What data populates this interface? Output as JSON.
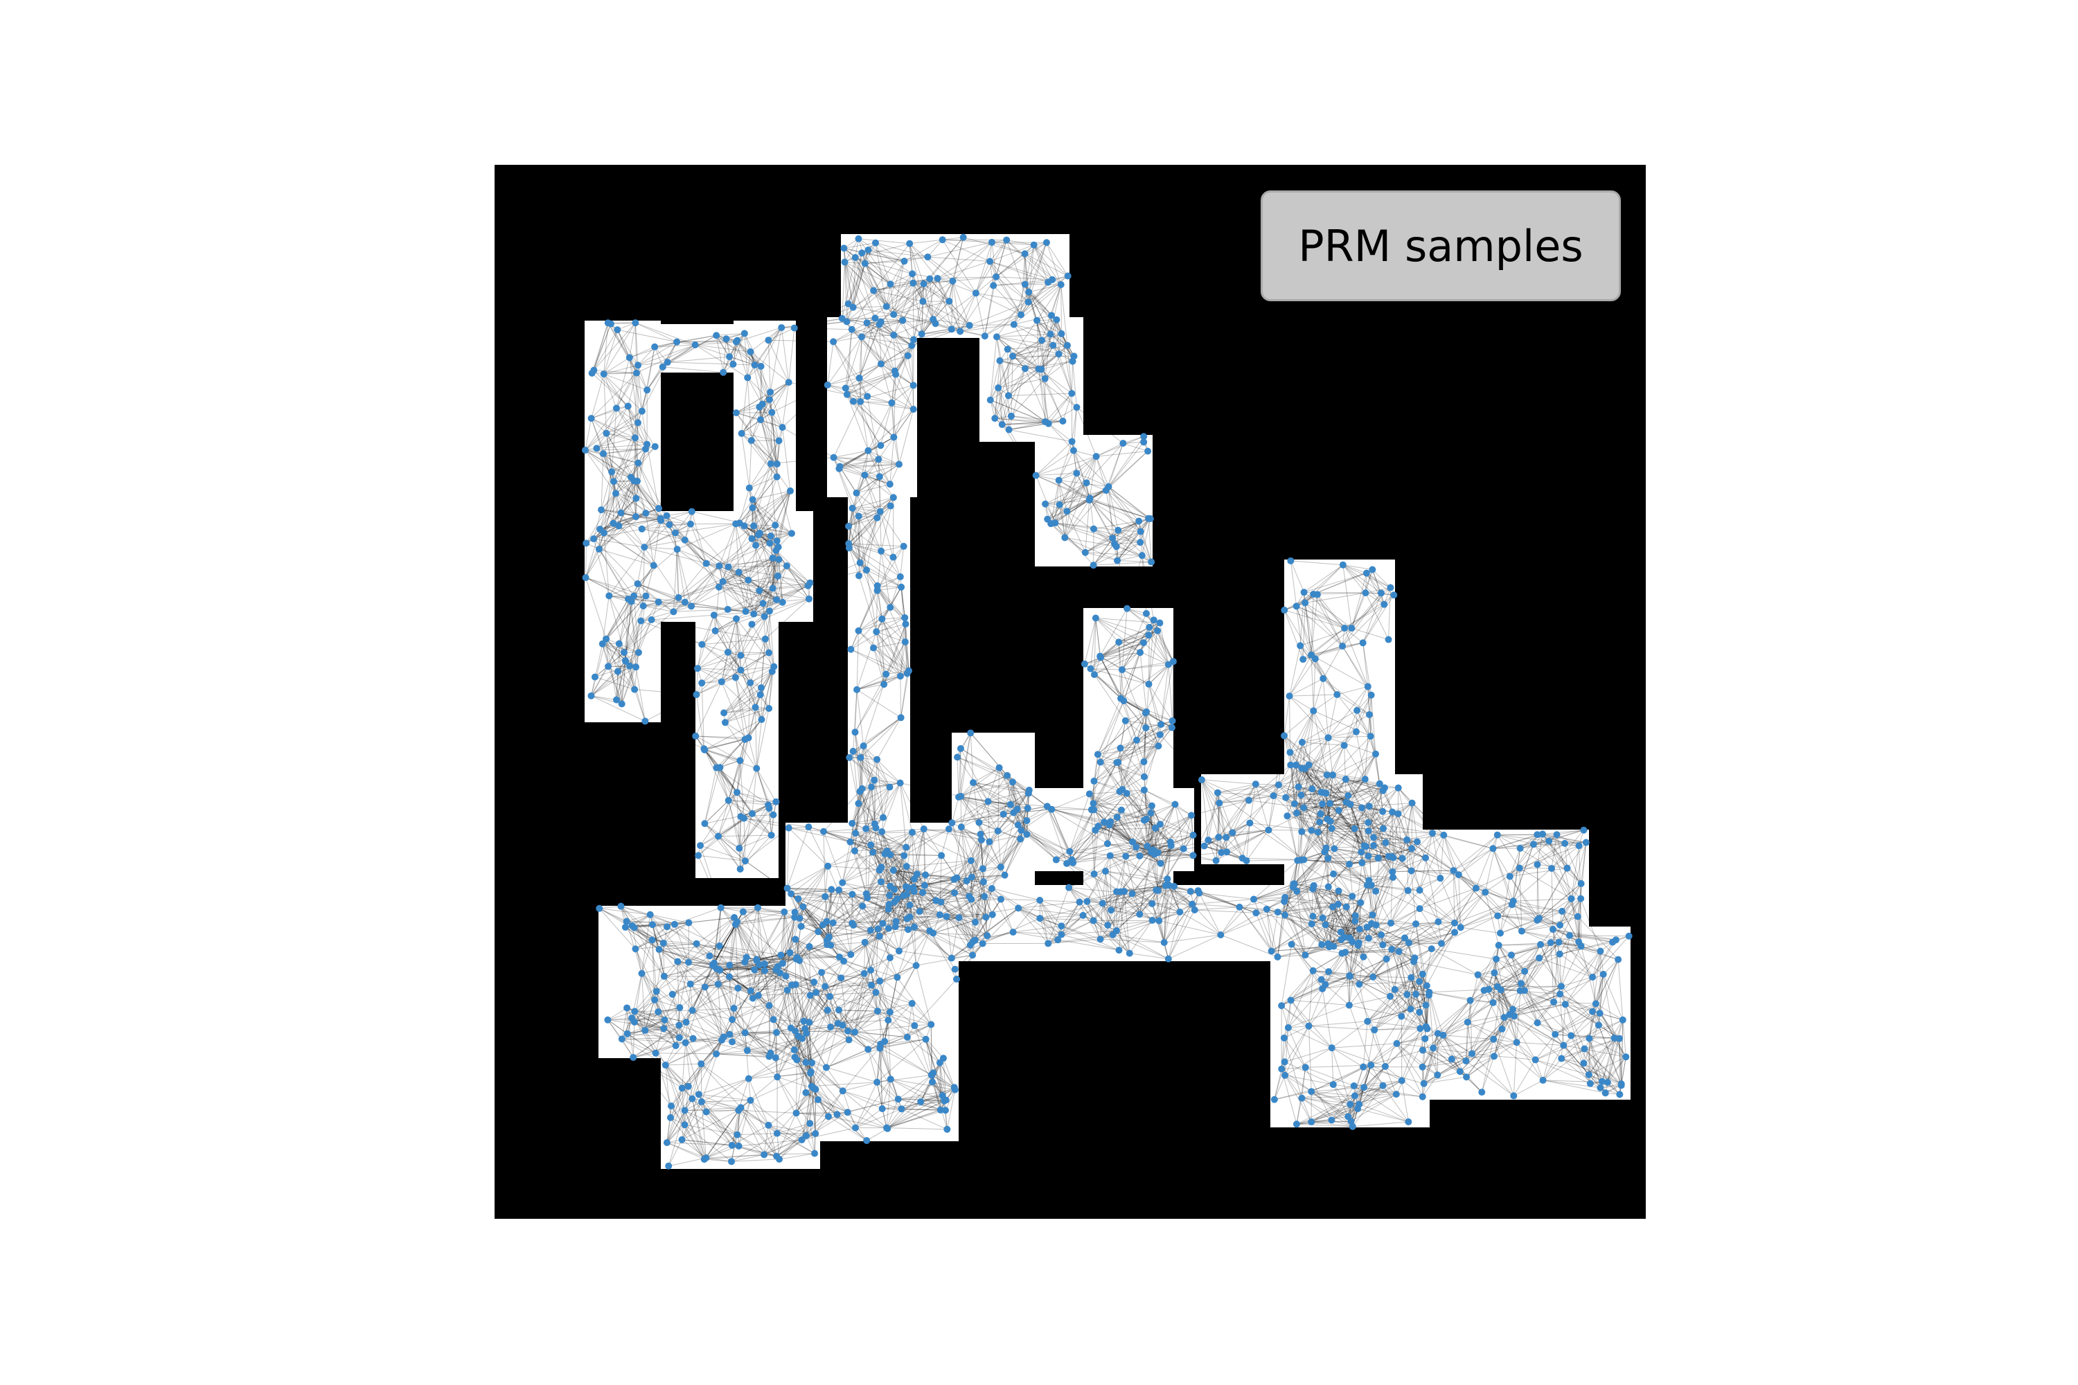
{
  "figure": {
    "legend_label": "PRM samples",
    "colors": {
      "background": "#ffffff",
      "obstacle": "#000000",
      "free_space": "#ffffff",
      "edges": "#000000",
      "samples": "#3a87c8",
      "legend_box": "#c8c8c8"
    }
  }
}
